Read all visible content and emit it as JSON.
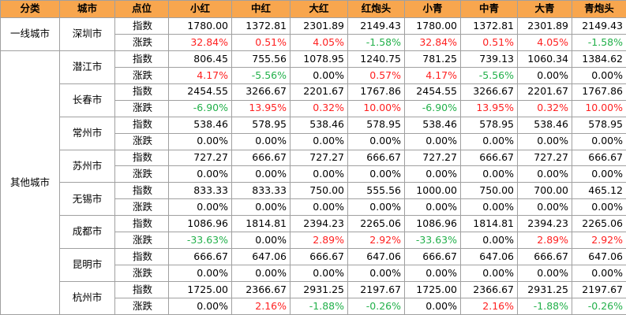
{
  "table": {
    "header": [
      "分类",
      "城市",
      "点位",
      "小红",
      "中红",
      "大红",
      "红炮头",
      "小青",
      "中青",
      "大青",
      "青炮头"
    ],
    "groups": [
      {
        "label": "一线城市",
        "cities": [
          {
            "name": "深圳市",
            "rows": [
              {
                "label": "指数",
                "values": [
                  "1780.00",
                  "1372.81",
                  "2301.89",
                  "2149.43",
                  "1780.00",
                  "1372.81",
                  "2301.89",
                  "2149.43"
                ]
              },
              {
                "label": "涨跌",
                "values": [
                  "32.84%",
                  "0.51%",
                  "4.05%",
                  "-1.58%",
                  "32.84%",
                  "0.51%",
                  "4.05%",
                  "-1.58%"
                ]
              }
            ]
          }
        ]
      },
      {
        "label": "其他城市",
        "cities": [
          {
            "name": "潜江市",
            "rows": [
              {
                "label": "指数",
                "values": [
                  "806.45",
                  "755.56",
                  "1078.95",
                  "1240.75",
                  "781.25",
                  "739.13",
                  "1060.34",
                  "1384.62"
                ]
              },
              {
                "label": "涨跌",
                "values": [
                  "4.17%",
                  "-5.56%",
                  "0.00%",
                  "0.57%",
                  "4.17%",
                  "-5.56%",
                  "0.00%",
                  "0.00%"
                ]
              }
            ]
          },
          {
            "name": "长春市",
            "rows": [
              {
                "label": "指数",
                "values": [
                  "2454.55",
                  "3266.67",
                  "2201.67",
                  "1767.86",
                  "2454.55",
                  "3266.67",
                  "2201.67",
                  "1767.86"
                ]
              },
              {
                "label": "涨跌",
                "values": [
                  "-6.90%",
                  "13.95%",
                  "0.32%",
                  "10.00%",
                  "-6.90%",
                  "13.95%",
                  "0.32%",
                  "10.00%"
                ]
              }
            ]
          },
          {
            "name": "常州市",
            "rows": [
              {
                "label": "指数",
                "values": [
                  "538.46",
                  "578.95",
                  "538.46",
                  "578.95",
                  "538.46",
                  "578.95",
                  "538.46",
                  "578.95"
                ]
              },
              {
                "label": "涨跌",
                "values": [
                  "0.00%",
                  "0.00%",
                  "0.00%",
                  "0.00%",
                  "0.00%",
                  "0.00%",
                  "0.00%",
                  "0.00%"
                ]
              }
            ]
          },
          {
            "name": "苏州市",
            "rows": [
              {
                "label": "指数",
                "values": [
                  "727.27",
                  "666.67",
                  "727.27",
                  "666.67",
                  "727.27",
                  "666.67",
                  "727.27",
                  "666.67"
                ]
              },
              {
                "label": "涨跌",
                "values": [
                  "0.00%",
                  "0.00%",
                  "0.00%",
                  "0.00%",
                  "0.00%",
                  "0.00%",
                  "0.00%",
                  "0.00%"
                ]
              }
            ]
          },
          {
            "name": "无锡市",
            "rows": [
              {
                "label": "指数",
                "values": [
                  "833.33",
                  "833.33",
                  "750.00",
                  "555.56",
                  "1000.00",
                  "750.00",
                  "700.00",
                  "465.12"
                ]
              },
              {
                "label": "涨跌",
                "values": [
                  "0.00%",
                  "0.00%",
                  "0.00%",
                  "0.00%",
                  "0.00%",
                  "0.00%",
                  "0.00%",
                  "0.00%"
                ]
              }
            ]
          },
          {
            "name": "成都市",
            "rows": [
              {
                "label": "指数",
                "values": [
                  "1086.96",
                  "1814.81",
                  "2394.23",
                  "2265.06",
                  "1086.96",
                  "1814.81",
                  "2394.23",
                  "2265.06"
                ]
              },
              {
                "label": "涨跌",
                "values": [
                  "-33.63%",
                  "0.00%",
                  "2.89%",
                  "2.92%",
                  "-33.63%",
                  "0.00%",
                  "2.89%",
                  "2.92%"
                ]
              }
            ]
          },
          {
            "name": "昆明市",
            "rows": [
              {
                "label": "指数",
                "values": [
                  "666.67",
                  "647.06",
                  "666.67",
                  "647.06",
                  "666.67",
                  "647.06",
                  "666.67",
                  "647.06"
                ]
              },
              {
                "label": "涨跌",
                "values": [
                  "0.00%",
                  "0.00%",
                  "0.00%",
                  "0.00%",
                  "0.00%",
                  "0.00%",
                  "0.00%",
                  "0.00%"
                ]
              }
            ]
          },
          {
            "name": "杭州市",
            "rows": [
              {
                "label": "指数",
                "values": [
                  "1725.00",
                  "2366.67",
                  "2931.25",
                  "2197.67",
                  "1725.00",
                  "2366.67",
                  "2931.25",
                  "2197.67"
                ]
              },
              {
                "label": "涨跌",
                "values": [
                  "0.00%",
                  "2.16%",
                  "-1.88%",
                  "-0.26%",
                  "0.00%",
                  "2.16%",
                  "-1.88%",
                  "-0.26%"
                ]
              }
            ]
          }
        ]
      }
    ]
  }
}
